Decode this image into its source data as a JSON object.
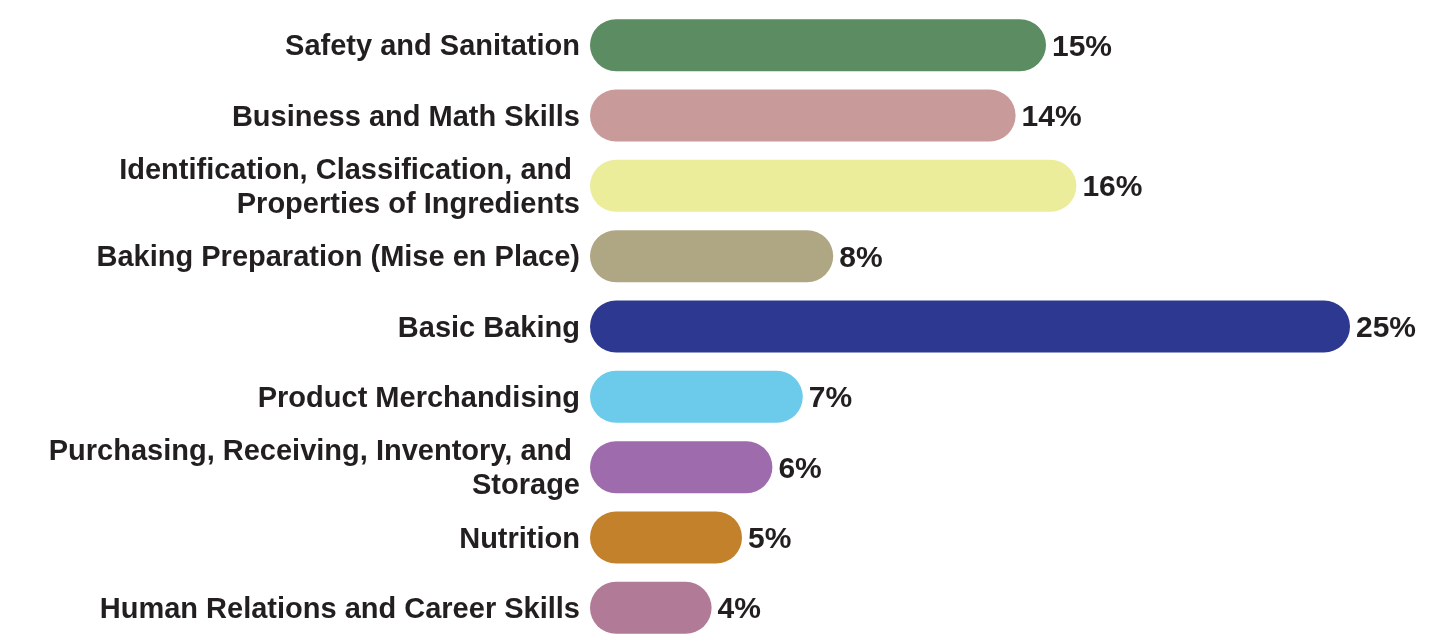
{
  "chart_data": {
    "type": "bar",
    "orientation": "horizontal",
    "categories": [
      "Safety and Sanitation",
      "Business and Math Skills",
      "Identification, Classification, and Properties of Ingredients",
      "Baking Preparation (Mise en Place)",
      "Basic Baking",
      "Product Merchandising",
      "Purchasing, Receiving, Inventory, and Storage",
      "Nutrition",
      "Human Relations and Career Skills"
    ],
    "values": [
      15,
      14,
      16,
      8,
      25,
      7,
      6,
      5,
      4
    ],
    "value_labels": [
      "15%",
      "14%",
      "16%",
      "8%",
      "25%",
      "7%",
      "6%",
      "5%",
      "4%"
    ],
    "colors": [
      "#5c8c62",
      "#c99a9a",
      "#ebed9a",
      "#afa784",
      "#2d3990",
      "#6ccaea",
      "#9e6bac",
      "#c3812b",
      "#b17b98"
    ]
  }
}
